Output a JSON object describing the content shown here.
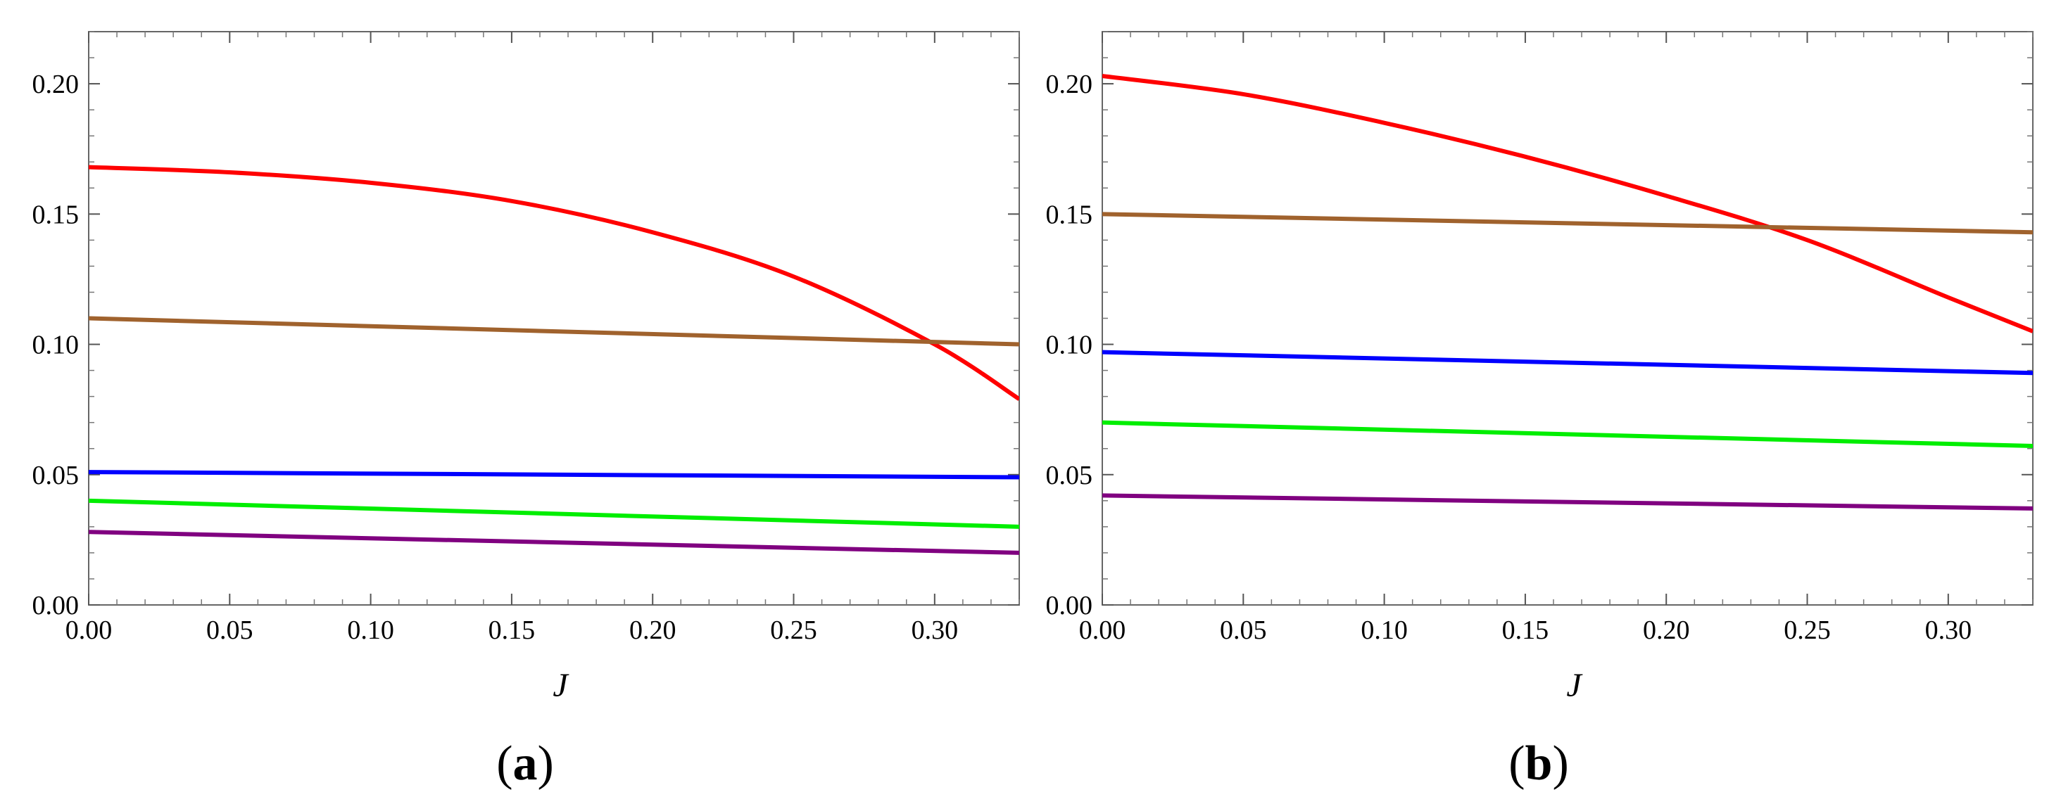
{
  "chart_data": [
    {
      "type": "line",
      "panel_label": "a",
      "xlabel": "J",
      "ylabel": "",
      "xlim": [
        0,
        0.33
      ],
      "ylim": [
        0,
        0.22
      ],
      "xticks": [
        0.0,
        0.05,
        0.1,
        0.15,
        0.2,
        0.25,
        0.3
      ],
      "xtick_labels": [
        "0.00",
        "0.05",
        "0.10",
        "0.15",
        "0.20",
        "0.25",
        "0.30"
      ],
      "yticks": [
        0.0,
        0.05,
        0.1,
        0.15,
        0.2
      ],
      "ytick_labels": [
        "0.00",
        "0.05",
        "0.10",
        "0.15",
        "0.20"
      ],
      "grid": false,
      "series": [
        {
          "color": "#ff0000",
          "x": [
            0,
            0.05,
            0.1,
            0.15,
            0.2,
            0.25,
            0.3,
            0.33
          ],
          "y": [
            0.168,
            0.166,
            0.162,
            0.155,
            0.143,
            0.126,
            0.1,
            0.079
          ]
        },
        {
          "color": "#a0622d",
          "x": [
            0,
            0.33
          ],
          "y": [
            0.11,
            0.1
          ]
        },
        {
          "color": "#0000ff",
          "x": [
            0,
            0.33
          ],
          "y": [
            0.051,
            0.049
          ]
        },
        {
          "color": "#00ee00",
          "x": [
            0,
            0.33
          ],
          "y": [
            0.04,
            0.03
          ]
        },
        {
          "color": "#800080",
          "x": [
            0,
            0.33
          ],
          "y": [
            0.028,
            0.02
          ]
        }
      ]
    },
    {
      "type": "line",
      "panel_label": "b",
      "xlabel": "J",
      "ylabel": "",
      "xlim": [
        0,
        0.33
      ],
      "ylim": [
        0,
        0.22
      ],
      "xticks": [
        0.0,
        0.05,
        0.1,
        0.15,
        0.2,
        0.25,
        0.3
      ],
      "xtick_labels": [
        "0.00",
        "0.05",
        "0.10",
        "0.15",
        "0.20",
        "0.25",
        "0.30"
      ],
      "yticks": [
        0.0,
        0.05,
        0.1,
        0.15,
        0.2
      ],
      "ytick_labels": [
        "0.00",
        "0.05",
        "0.10",
        "0.15",
        "0.20"
      ],
      "grid": false,
      "series": [
        {
          "color": "#ff0000",
          "x": [
            0,
            0.05,
            0.1,
            0.15,
            0.2,
            0.25,
            0.3,
            0.33
          ],
          "y": [
            0.203,
            0.196,
            0.185,
            0.172,
            0.157,
            0.14,
            0.118,
            0.105
          ]
        },
        {
          "color": "#a0622d",
          "x": [
            0,
            0.33
          ],
          "y": [
            0.15,
            0.143
          ]
        },
        {
          "color": "#0000ff",
          "x": [
            0,
            0.33
          ],
          "y": [
            0.097,
            0.089
          ]
        },
        {
          "color": "#00ee00",
          "x": [
            0,
            0.33
          ],
          "y": [
            0.07,
            0.061
          ]
        },
        {
          "color": "#800080",
          "x": [
            0,
            0.33
          ],
          "y": [
            0.042,
            0.037
          ]
        }
      ]
    }
  ]
}
